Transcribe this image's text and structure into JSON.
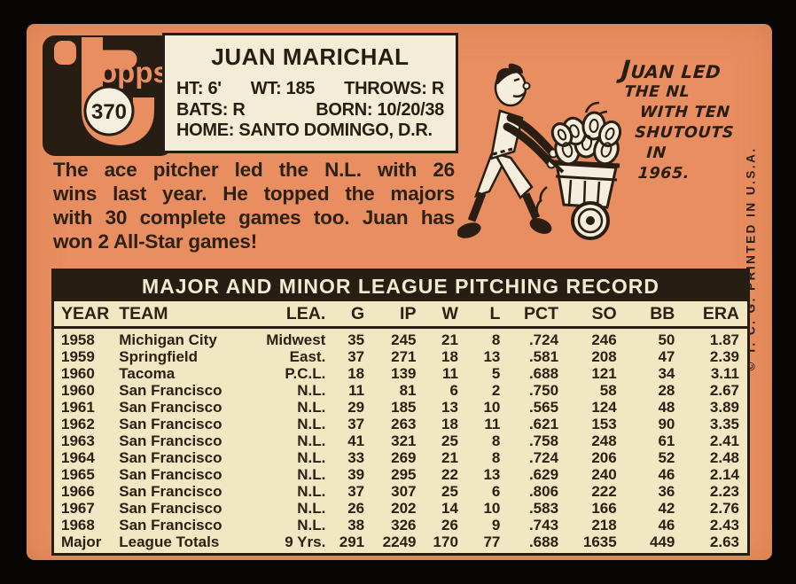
{
  "card_header": {
    "logo_text": "opps",
    "card_number": "370",
    "player_name": "JUAN MARICHAL",
    "info_row1": {
      "ht": "HT: 6'",
      "wt": "WT: 185",
      "throws": "THROWS: R"
    },
    "info_row2": {
      "bats": "BATS: R",
      "born": "BORN: 10/20/38"
    },
    "info_row3": {
      "home": "HOME: SANTO DOMINGO, D.R."
    }
  },
  "blurb": {
    "line1": "The ace pitcher led the N.L. with 26",
    "line2": "wins last year. He topped the majors",
    "line3": "with 30 complete games too. Juan has",
    "line4": "won 2 All-Star games!"
  },
  "cartoon": {
    "caption_line1": "JUAN LED",
    "caption_line2": "THE NL",
    "caption_line3": "WITH TEN",
    "caption_line4": "SHUTOUTS",
    "caption_line5": "IN",
    "caption_line6": "1965."
  },
  "side_text": "© T. C. G. PRINTED IN U.S.A.",
  "table": {
    "title": "MAJOR AND MINOR LEAGUE PITCHING RECORD",
    "columns": [
      "YEAR",
      "TEAM",
      "LEA.",
      "G",
      "IP",
      "W",
      "L",
      "PCT",
      "SO",
      "BB",
      "ERA"
    ],
    "rows": [
      [
        "1958",
        "Michigan City",
        "Midwest",
        "35",
        "245",
        "21",
        "8",
        ".724",
        "246",
        "50",
        "1.87"
      ],
      [
        "1959",
        "Springfield",
        "East.",
        "37",
        "271",
        "18",
        "13",
        ".581",
        "208",
        "47",
        "2.39"
      ],
      [
        "1960",
        "Tacoma",
        "P.C.L.",
        "18",
        "139",
        "11",
        "5",
        ".688",
        "121",
        "34",
        "3.11"
      ],
      [
        "1960",
        "San Francisco",
        "N.L.",
        "11",
        "81",
        "6",
        "2",
        ".750",
        "58",
        "28",
        "2.67"
      ],
      [
        "1961",
        "San Francisco",
        "N.L.",
        "29",
        "185",
        "13",
        "10",
        ".565",
        "124",
        "48",
        "3.89"
      ],
      [
        "1962",
        "San Francisco",
        "N.L.",
        "37",
        "263",
        "18",
        "11",
        ".621",
        "153",
        "90",
        "3.35"
      ],
      [
        "1963",
        "San Francisco",
        "N.L.",
        "41",
        "321",
        "25",
        "8",
        ".758",
        "248",
        "61",
        "2.41"
      ],
      [
        "1964",
        "San Francisco",
        "N.L.",
        "33",
        "269",
        "21",
        "8",
        ".724",
        "206",
        "52",
        "2.48"
      ],
      [
        "1965",
        "San Francisco",
        "N.L.",
        "39",
        "295",
        "22",
        "13",
        ".629",
        "240",
        "46",
        "2.14"
      ],
      [
        "1966",
        "San Francisco",
        "N.L.",
        "37",
        "307",
        "25",
        "6",
        ".806",
        "222",
        "36",
        "2.23"
      ],
      [
        "1967",
        "San Francisco",
        "N.L.",
        "26",
        "202",
        "14",
        "10",
        ".583",
        "166",
        "42",
        "2.76"
      ],
      [
        "1968",
        "San Francisco",
        "N.L.",
        "38",
        "326",
        "26",
        "9",
        ".743",
        "218",
        "46",
        "2.43"
      ],
      [
        "Major",
        "League Totals",
        "9 Yrs.",
        "291",
        "2249",
        "170",
        "77",
        ".688",
        "1635",
        "449",
        "2.63"
      ]
    ]
  },
  "colors": {
    "card_orange": "#e88e60",
    "ink_black": "#271d12",
    "table_cream": "#f2e7c3",
    "infobox_cream": "#f3edd8"
  }
}
